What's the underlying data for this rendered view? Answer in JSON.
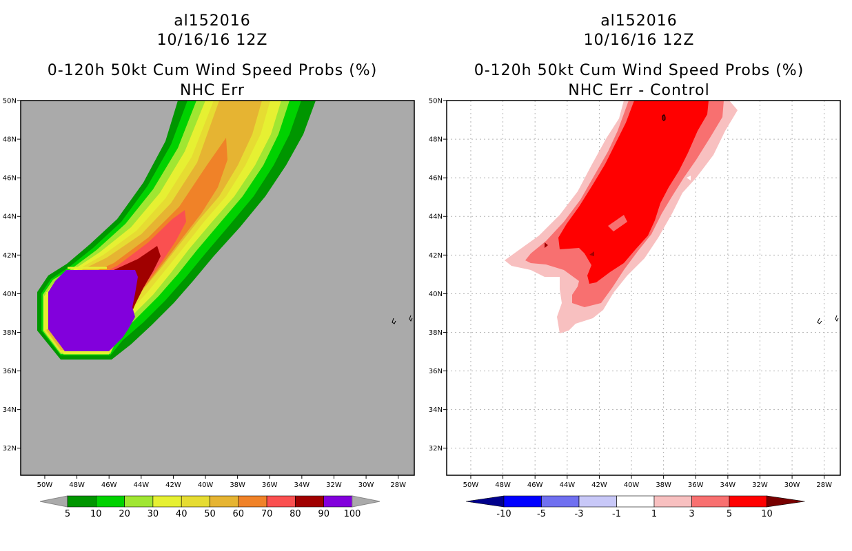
{
  "charts": [
    {
      "title_line1": "al152016",
      "title_line2": "10/16/16 12Z",
      "title_line3": "0-120h 50kt Cum Wind Speed Probs (%)",
      "subtitle": "NHC Err",
      "legend_labels": [
        "5",
        "10",
        "20",
        "30",
        "40",
        "50",
        "60",
        "70",
        "80",
        "90",
        "100"
      ],
      "legend_colors": [
        "#009600",
        "#00d200",
        "#a0e632",
        "#e6f032",
        "#e6dc32",
        "#e6b432",
        "#f08228",
        "#fa5050",
        "#a00000",
        "#8200dc"
      ],
      "background_color": "#aaaaaa"
    },
    {
      "title_line1": "al152016",
      "title_line2": "10/16/16 12Z",
      "title_line3": "0-120h 50kt Cum Wind Speed Probs (%)",
      "subtitle": "NHC Err - Control",
      "legend_labels": [
        "-10",
        "-5",
        "-3",
        "-1",
        "1",
        "3",
        "5",
        "10"
      ],
      "legend_colors": [
        "#0000ff",
        "#7070f0",
        "#c8c8f8",
        "#ffffff",
        "#f8c0c0",
        "#f87070",
        "#ff0000"
      ],
      "legend_left_arrow_color": "#00008c",
      "legend_right_arrow_color": "#780000",
      "background_color": "#ffffff"
    }
  ],
  "chart_data": [
    {
      "type": "heatmap",
      "title": "0-120h 50kt Cum Wind Speed Probs (%)",
      "subtitle": "NHC Err",
      "x_ticks": [
        "50W",
        "48W",
        "46W",
        "44W",
        "42W",
        "40W",
        "38W",
        "36W",
        "34W",
        "32W",
        "30W",
        "28W"
      ],
      "y_ticks": [
        "32N",
        "34N",
        "36N",
        "38N",
        "40N",
        "42N",
        "44N",
        "46N",
        "48N",
        "50N"
      ],
      "x_values_lon": [
        -50,
        -48,
        -46,
        -44,
        -42,
        -40,
        -38,
        -36,
        -34,
        -32,
        -30,
        -28
      ],
      "y_values_lat": [
        32,
        34,
        36,
        38,
        40,
        42,
        44,
        46,
        48,
        50
      ],
      "xlim": [
        -51.5,
        -27
      ],
      "ylim": [
        30.6,
        50
      ],
      "contour_levels": [
        5,
        10,
        20,
        30,
        40,
        50,
        60,
        70,
        80,
        90,
        100
      ],
      "grid": false
    },
    {
      "type": "heatmap",
      "title": "0-120h 50kt Cum Wind Speed Probs (%)",
      "subtitle": "NHC Err - Control",
      "x_ticks": [
        "50W",
        "48W",
        "46W",
        "44W",
        "42W",
        "40W",
        "38W",
        "36W",
        "34W",
        "32W",
        "30W",
        "28W"
      ],
      "y_ticks": [
        "32N",
        "34N",
        "36N",
        "38N",
        "40N",
        "42N",
        "44N",
        "46N",
        "48N",
        "50N"
      ],
      "x_values_lon": [
        -50,
        -48,
        -46,
        -44,
        -42,
        -40,
        -38,
        -36,
        -34,
        -32,
        -30,
        -28
      ],
      "y_values_lat": [
        32,
        34,
        36,
        38,
        40,
        42,
        44,
        46,
        48,
        50
      ],
      "xlim": [
        -51.5,
        -27
      ],
      "ylim": [
        30.6,
        50
      ],
      "contour_levels": [
        -10,
        -5,
        -3,
        -1,
        1,
        3,
        5,
        10
      ],
      "grid": true
    }
  ]
}
